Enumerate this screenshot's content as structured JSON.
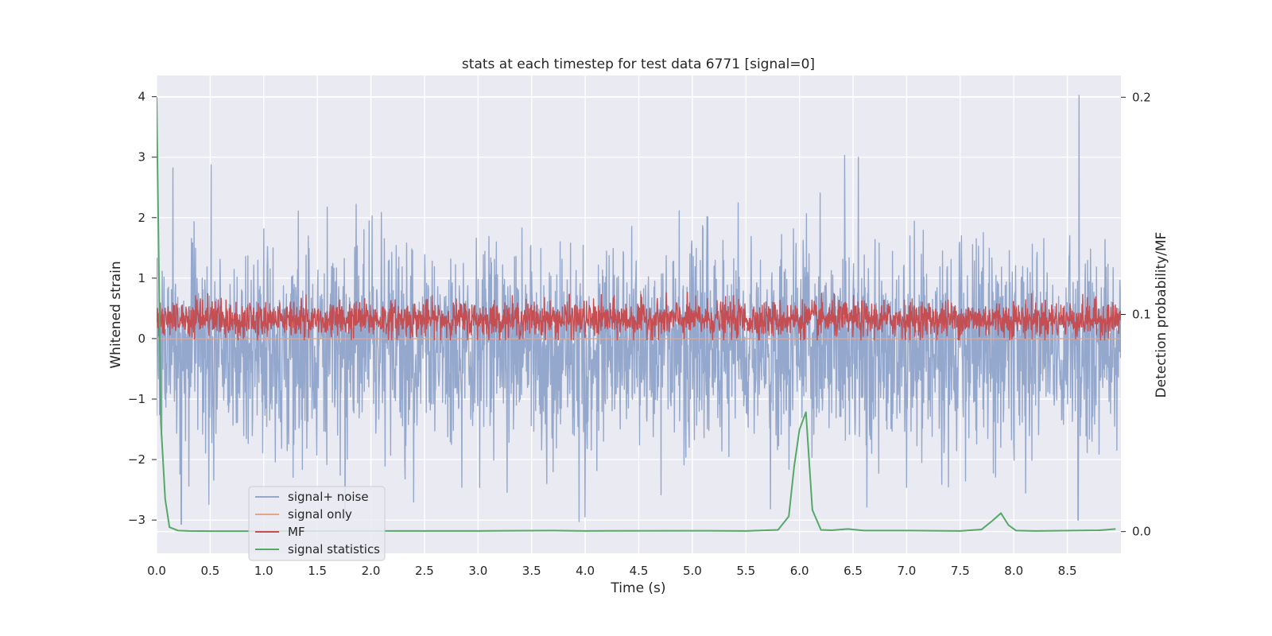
{
  "chart_data": {
    "type": "line",
    "title": "stats at each timestep for test data 6771 [signal=0]",
    "xlabel": "Time (s)",
    "ylabel": "Whitened strain",
    "y2label": "Detection probability/MF",
    "xlim": [
      0.0,
      9.0
    ],
    "ylim": [
      -3.55,
      4.35
    ],
    "y2lim": [
      -0.01,
      0.21
    ],
    "x_ticks": [
      0.0,
      0.5,
      1.0,
      1.5,
      2.0,
      2.5,
      3.0,
      3.5,
      4.0,
      4.5,
      5.0,
      5.5,
      6.0,
      6.5,
      7.0,
      7.5,
      8.0,
      8.5
    ],
    "y_ticks": [
      -3,
      -2,
      -1,
      0,
      1,
      2,
      3,
      4
    ],
    "y2_ticks": [
      0.0,
      0.1,
      0.2
    ],
    "grid": true,
    "legend_position": "lower-left",
    "series": [
      {
        "name": "signal+ noise",
        "color": "#94a7cc",
        "axis": "left",
        "style": "dense-noise",
        "x_range": [
          0.0,
          9.0
        ],
        "mean": -0.15,
        "std": 0.85,
        "peaks": [
          {
            "x": 0.51,
            "y": 2.87
          },
          {
            "x": 6.42,
            "y": 3.03
          },
          {
            "x": 6.55,
            "y": 3.0
          },
          {
            "x": 8.61,
            "y": 4.02
          },
          {
            "x": 0.23,
            "y": -3.07
          },
          {
            "x": 2.4,
            "y": -2.7
          },
          {
            "x": 8.6,
            "y": -3.0
          }
        ]
      },
      {
        "name": "signal only",
        "color": "#e7a48a",
        "axis": "left",
        "style": "flat",
        "y": 0.0
      },
      {
        "name": "MF",
        "color": "#c44e52",
        "axis": "left",
        "style": "dense-noise",
        "x_range": [
          0.0,
          9.0
        ],
        "mean": 0.32,
        "std": 0.15,
        "min": -0.02,
        "max": 1.0
      },
      {
        "name": "signal statistics",
        "color": "#55a868",
        "axis": "right",
        "x": [
          0.0,
          0.04,
          0.08,
          0.12,
          0.2,
          0.3,
          0.5,
          1.0,
          2.0,
          3.0,
          3.7,
          4.0,
          5.0,
          5.5,
          5.8,
          5.9,
          5.95,
          6.0,
          6.06,
          6.12,
          6.2,
          6.3,
          6.45,
          6.6,
          7.0,
          7.5,
          7.7,
          7.8,
          7.88,
          7.95,
          8.02,
          8.2,
          8.8,
          8.95
        ],
        "y": [
          0.2,
          0.05,
          0.015,
          0.002,
          0.0005,
          0.0003,
          0.0002,
          0.0002,
          0.0003,
          0.0003,
          0.0005,
          0.0003,
          0.0004,
          0.0003,
          0.0008,
          0.007,
          0.03,
          0.047,
          0.055,
          0.01,
          0.0008,
          0.0006,
          0.0012,
          0.0005,
          0.0005,
          0.0003,
          0.001,
          0.005,
          0.0085,
          0.003,
          0.0005,
          0.0003,
          0.0006,
          0.0012
        ]
      }
    ]
  }
}
